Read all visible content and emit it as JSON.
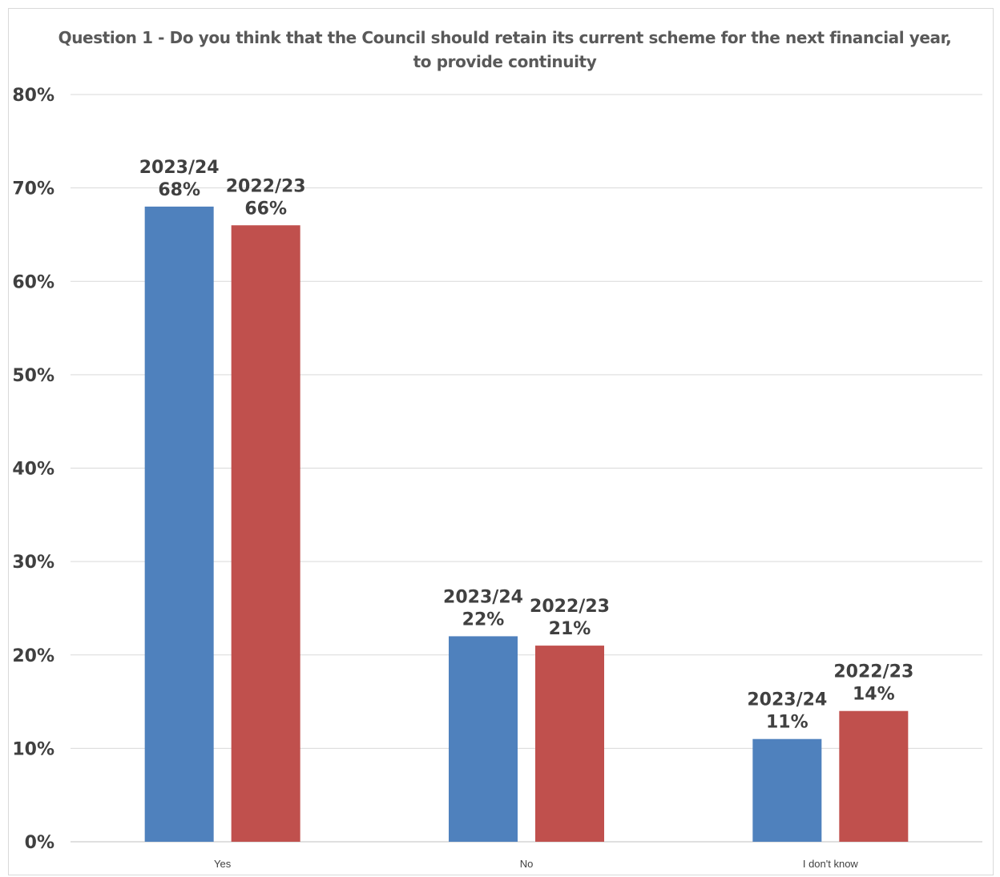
{
  "chart_data": {
    "type": "bar",
    "title": "Question 1 - Do you think that the Council should retain its current scheme for the next financial year, to provide continuity",
    "categories": [
      "Yes",
      "No",
      "I don't know"
    ],
    "series": [
      {
        "name": "2023/24",
        "values": [
          68,
          22,
          11
        ],
        "color": "#4f81bd"
      },
      {
        "name": "2022/23",
        "values": [
          66,
          21,
          14
        ],
        "color": "#c0504d"
      }
    ],
    "data_labels": [
      [
        "2023/24\n68%",
        "2023/24\n22%",
        "2023/24\n11%"
      ],
      [
        "2022/23\n66%",
        "2022/23\n21%",
        "2022/23\n14%"
      ]
    ],
    "y_ticks": [
      "0%",
      "10%",
      "20%",
      "30%",
      "40%",
      "50%",
      "60%",
      "70%",
      "80%"
    ],
    "ylim": [
      0,
      80
    ],
    "xlabel": "",
    "ylabel": "",
    "grid": true,
    "legend": "none"
  }
}
